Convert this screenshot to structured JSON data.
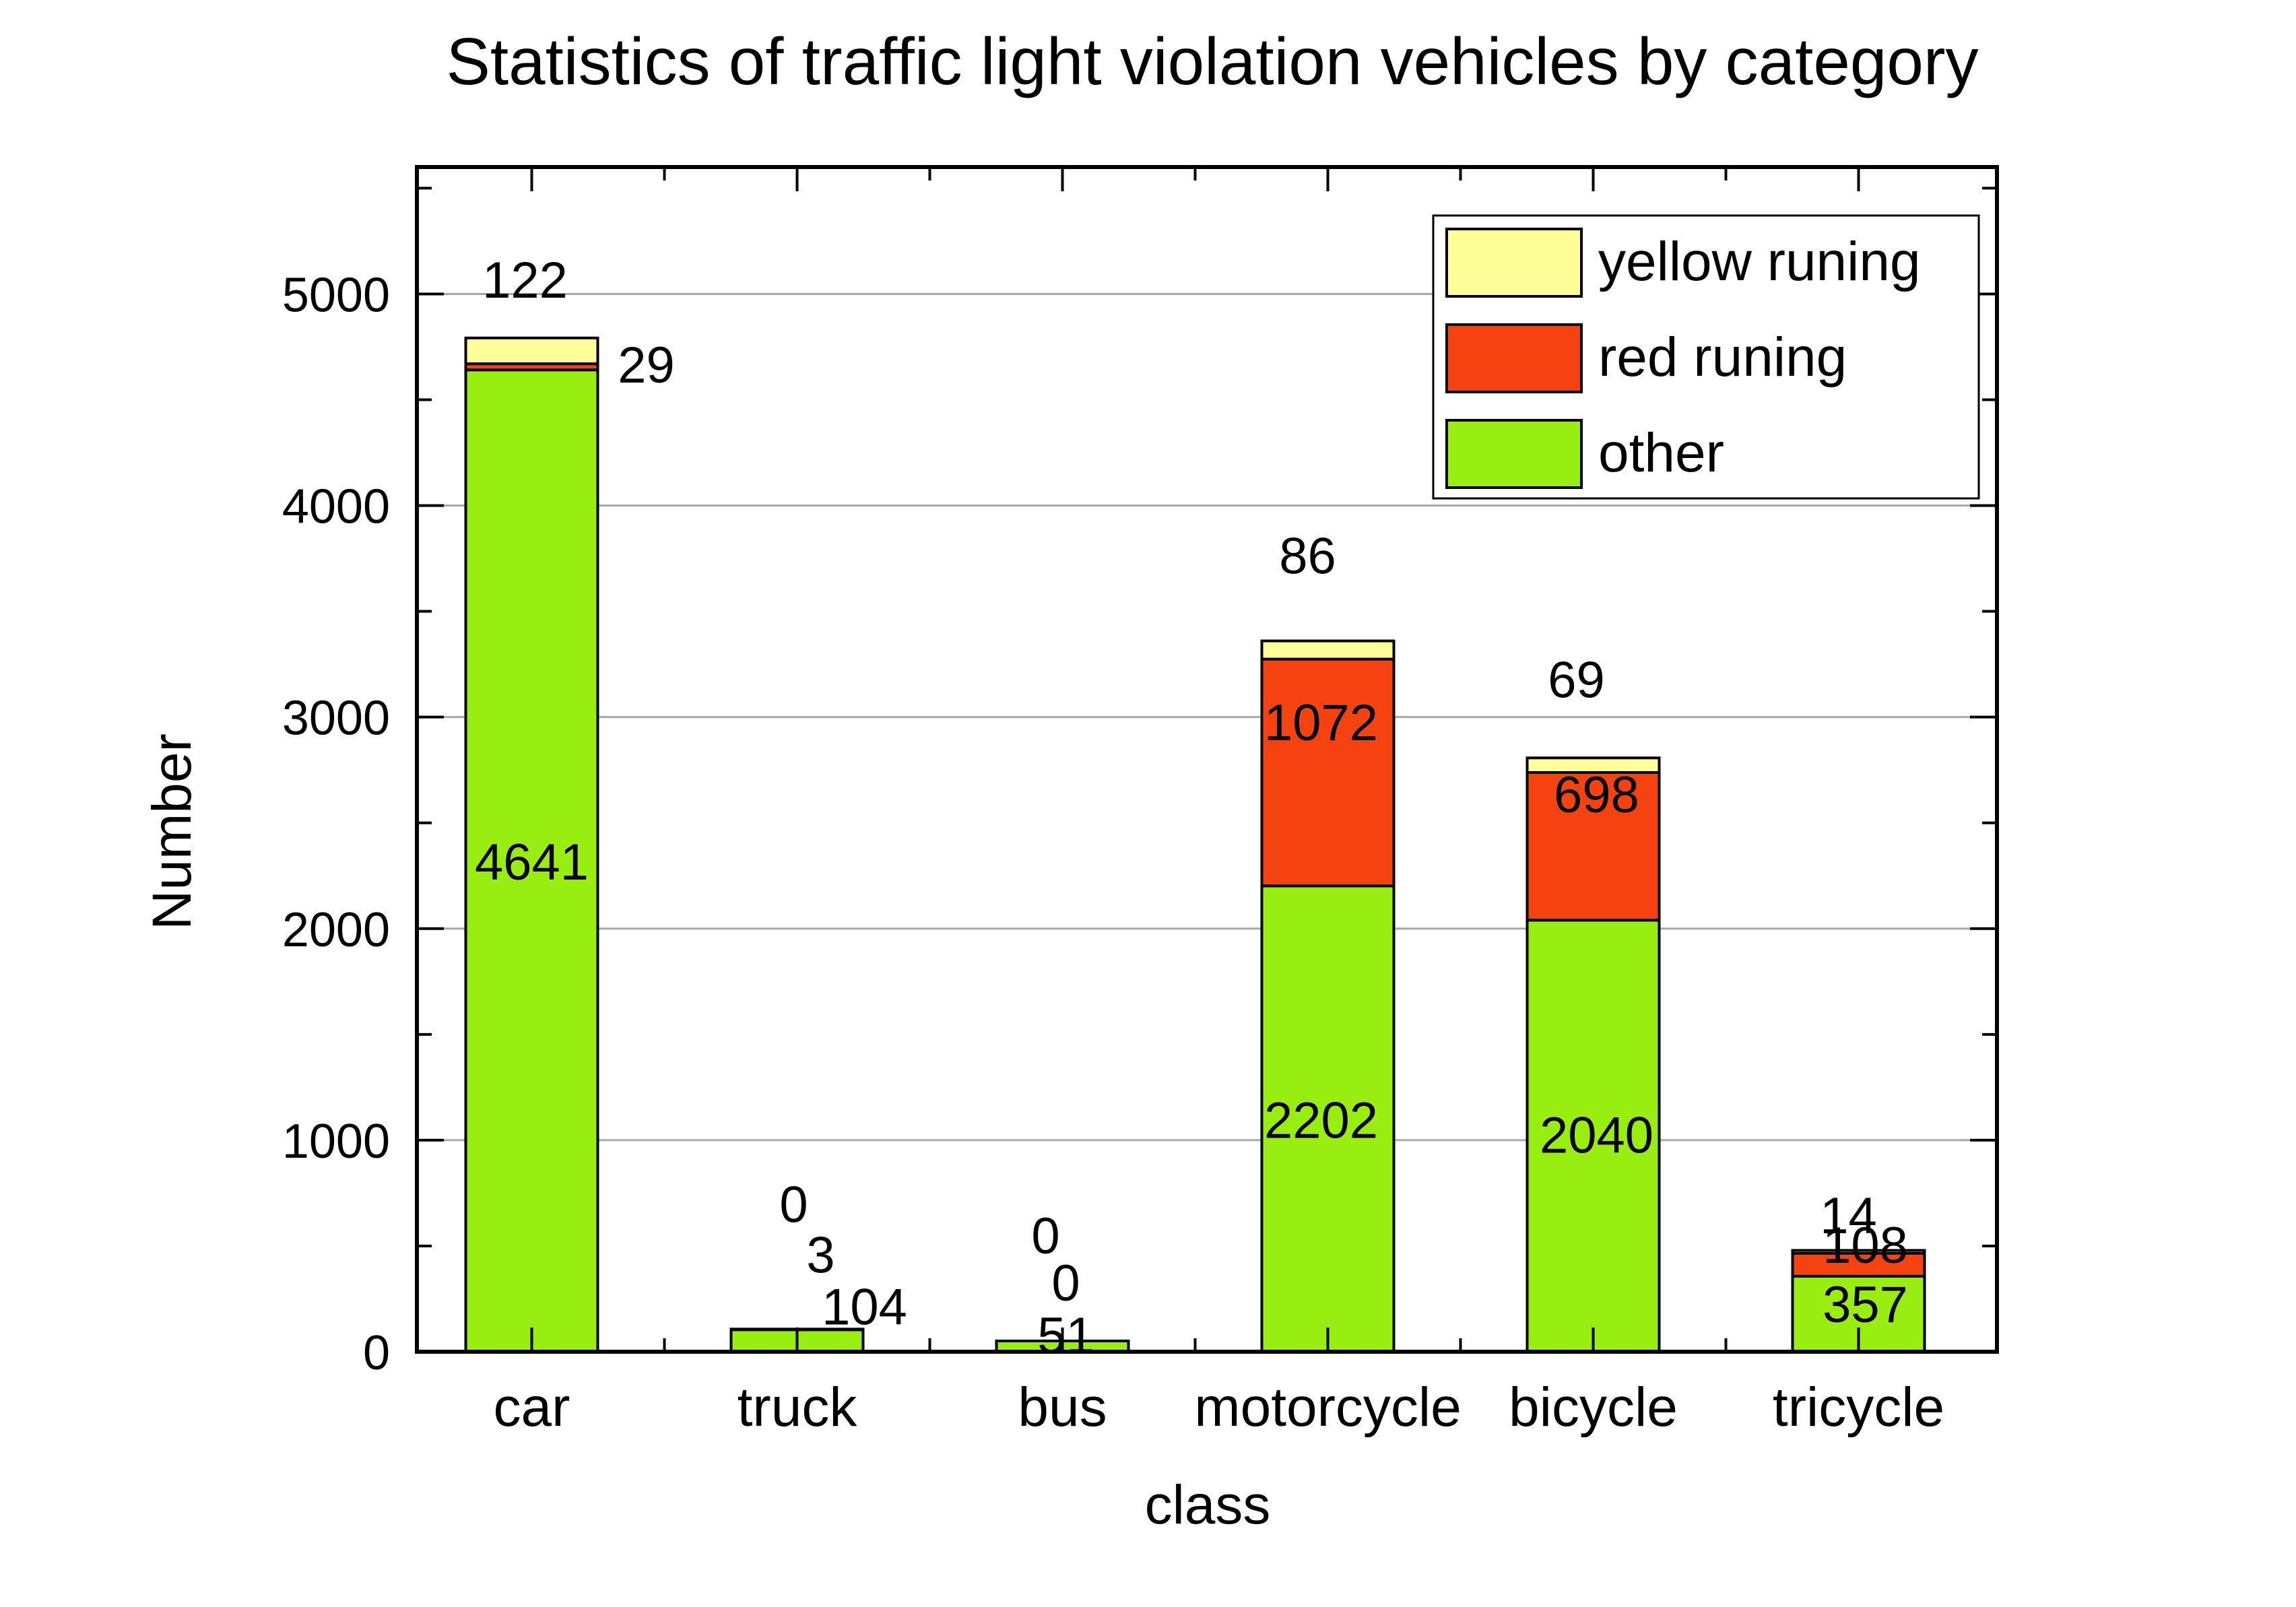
{
  "chart_data": {
    "type": "bar",
    "stacked": true,
    "title": "Statistics of traffic light violation vehicles by category",
    "xlabel": "class",
    "ylabel": "Number",
    "ylim": [
      0,
      5600
    ],
    "yticks": [
      0,
      1000,
      2000,
      3000,
      4000,
      5000
    ],
    "grid": true,
    "legend_position": "top-right",
    "categories": [
      "car",
      "truck",
      "bus",
      "motorcycle",
      "bicycle",
      "tricycle"
    ],
    "series": [
      {
        "name": "other",
        "color": "#99ee11",
        "values": [
          4641,
          104,
          51,
          2202,
          2040,
          357
        ]
      },
      {
        "name": "red runing",
        "color": "#f44311",
        "values": [
          29,
          3,
          0,
          1072,
          698,
          108
        ]
      },
      {
        "name": "yellow runing",
        "color": "#ffff99",
        "values": [
          122,
          0,
          0,
          86,
          69,
          14
        ]
      }
    ],
    "legend_order": [
      "yellow runing",
      "red runing",
      "other"
    ]
  }
}
